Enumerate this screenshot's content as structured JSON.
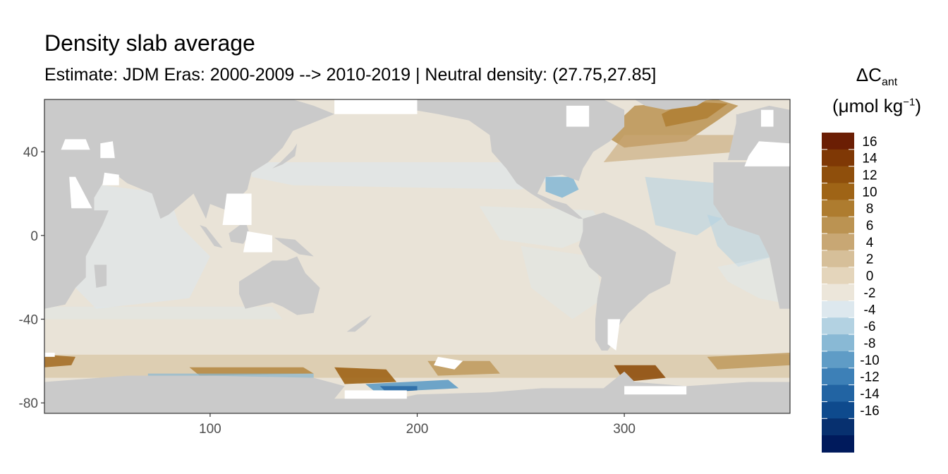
{
  "title": "Density slab average",
  "subtitle": "Estimate: JDM Eras: 2000-2009 --> 2010-2019 | Neutral density: (27.75,27.85]",
  "legend": {
    "symbol": "ΔC",
    "subscript": "ant",
    "unit_prefix": "(μmol kg",
    "unit_exponent": "−1",
    "unit_suffix": ")"
  },
  "colors": {
    "land": "#cacaca",
    "no_data": "#ffffff",
    "panel_border": "#333333"
  },
  "chart_data": {
    "type": "heatmap",
    "title": "Density slab average",
    "subtitle": "Estimate: JDM Eras: 2000-2009 --> 2010-2019 | Neutral density: (27.75,27.85]",
    "xlim": [
      20,
      380
    ],
    "ylim": [
      -85,
      65
    ],
    "x_ticks": [
      100,
      200,
      300
    ],
    "y_ticks": [
      40,
      0,
      -40,
      -80
    ],
    "grid": false,
    "legend_position": "right",
    "legend_breaks": [
      {
        "label": "16",
        "color": "#6b1e04"
      },
      {
        "label": "14",
        "color": "#7f3805"
      },
      {
        "label": "12",
        "color": "#8f4f0c"
      },
      {
        "label": "10",
        "color": "#9f6416"
      },
      {
        "label": "8",
        "color": "#ae7c2f"
      },
      {
        "label": "6",
        "color": "#bb9352"
      },
      {
        "label": "4",
        "color": "#c8a774"
      },
      {
        "label": "2",
        "color": "#d6bf99"
      },
      {
        "label": "0",
        "color": "#e4d5bb"
      },
      {
        "label": "-2",
        "color": "#ece6da"
      },
      {
        "label": "-4",
        "color": "#dde8ee"
      },
      {
        "label": "-6",
        "color": "#b3d2e2"
      },
      {
        "label": "-8",
        "color": "#89b9d5"
      },
      {
        "label": "-10",
        "color": "#5f9cc6"
      },
      {
        "label": "-12",
        "color": "#3d80b7"
      },
      {
        "label": "-14",
        "color": "#2264a3"
      },
      {
        "label": "-16",
        "color": "#0e4a8d"
      },
      {
        "label": "",
        "color": "#07306f"
      },
      {
        "label": "",
        "color": "#001a5c"
      }
    ]
  }
}
